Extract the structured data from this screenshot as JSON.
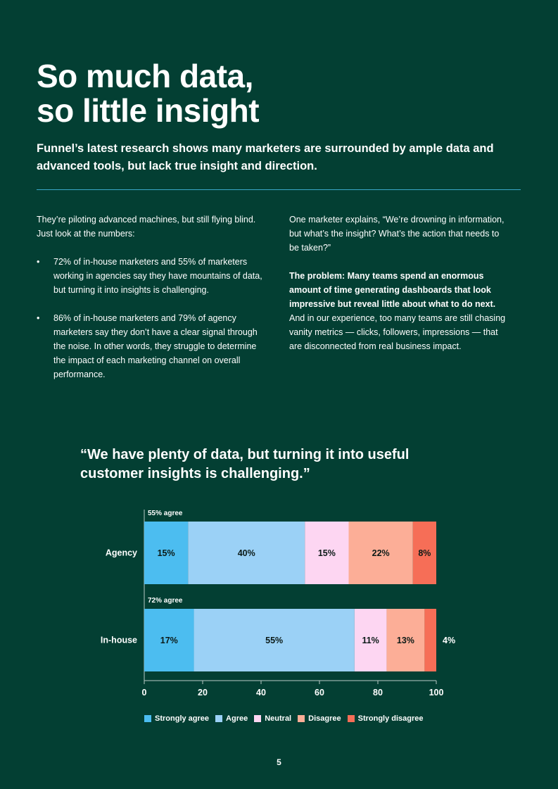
{
  "title": {
    "line1": "So much data,",
    "line2": "so little insight"
  },
  "subtitle": "Funnel’s latest research shows many marketers are surrounded by ample data and advanced tools, but lack true insight and direction.",
  "left_column": {
    "intro": "They’re piloting advanced machines, but still flying blind. Just look at the numbers:",
    "bullets": [
      "72% of in-house marketers and 55% of marketers working in agencies say they have mountains of data, but turning it into insights is challenging.",
      "86% of in-house marketers and 79% of agency marketers say they don’t have a clear signal through the noise. In other words, they struggle to determine the impact of each marketing channel on overall performance."
    ]
  },
  "right_column": {
    "quote_paragraph": "One marketer explains, “We’re drowning in information, but what’s the insight? What’s the action that needs to be taken?”",
    "problem_bold": "The problem: Many teams spend an enormous amount of time generating dashboards that look impressive but reveal little about what to do next.",
    "problem_rest": " And in our experience, too many teams are still chasing vanity metrics — clicks, followers, impressions — that are disconnected from real business impact."
  },
  "chart_quote": "“We have plenty of data, but turning it into useful customer insights is challenging.”",
  "chart_data": {
    "type": "bar",
    "orientation": "horizontal",
    "stacked": true,
    "categories": [
      "Agency",
      "In-house"
    ],
    "category_notes": [
      "55% agree",
      "72% agree"
    ],
    "series": [
      {
        "name": "Strongly agree",
        "color": "#4cbdf0",
        "values": [
          15,
          17
        ],
        "labels": [
          "15%",
          "17%"
        ]
      },
      {
        "name": "Agree",
        "color": "#9bd1f6",
        "values": [
          40,
          55
        ],
        "labels": [
          "40%",
          "55%"
        ]
      },
      {
        "name": "Neutral",
        "color": "#fdd6f2",
        "values": [
          15,
          11
        ],
        "labels": [
          "15%",
          "11%"
        ]
      },
      {
        "name": "Disagree",
        "color": "#fcae97",
        "values": [
          22,
          13
        ],
        "labels": [
          "22%",
          "13%"
        ]
      },
      {
        "name": "Strongly disagree",
        "color": "#f66e57",
        "values": [
          8,
          4
        ],
        "labels": [
          "8%",
          "4%"
        ]
      }
    ],
    "xlim": [
      0,
      100
    ],
    "xticks": [
      0,
      20,
      40,
      60,
      80,
      100
    ],
    "grid": false,
    "legend_position": "bottom"
  },
  "page_number": "5"
}
